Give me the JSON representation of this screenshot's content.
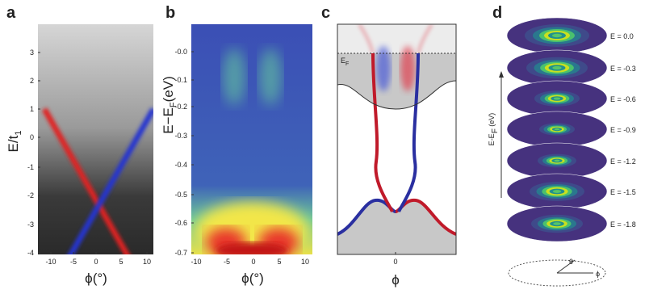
{
  "panels": [
    {
      "label": "a",
      "y_label": "E/t",
      "y_label_sub": "1",
      "x_label": "ϕ(°)",
      "yticks": [
        "3",
        "2",
        "1",
        "0",
        "-1",
        "-2",
        "-3",
        "-4"
      ],
      "xticks": [
        "-10",
        "-5",
        "0",
        "5",
        "10"
      ]
    },
    {
      "label": "b",
      "y_label": "E−E",
      "y_label_sub": "F",
      "y_label_unit": "(eV)",
      "x_label": "ϕ(°)",
      "yticks": [
        "-0.0",
        "-0.1",
        "-0.2",
        "-0.3",
        "-0.4",
        "-0.5",
        "-0.6",
        "-0.7"
      ],
      "xticks": [
        "-10",
        "-5",
        "0",
        "5",
        "10"
      ]
    },
    {
      "label": "c",
      "fermi_label": "E",
      "fermi_label_sub": "F",
      "xticks": [
        "0"
      ],
      "x_label": "ϕ"
    },
    {
      "label": "d",
      "y_label": "E-E",
      "y_label_sub": "F",
      "y_label_unit": " (eV)",
      "energy_labels": [
        "E = 0.0",
        "E = -0.3",
        "E = -0.6",
        "E = -0.9",
        "E = -1.2",
        "E = -1.5",
        "E = -1.8"
      ],
      "angle_label": "θ",
      "azimuth_label": "ϕ"
    }
  ]
}
